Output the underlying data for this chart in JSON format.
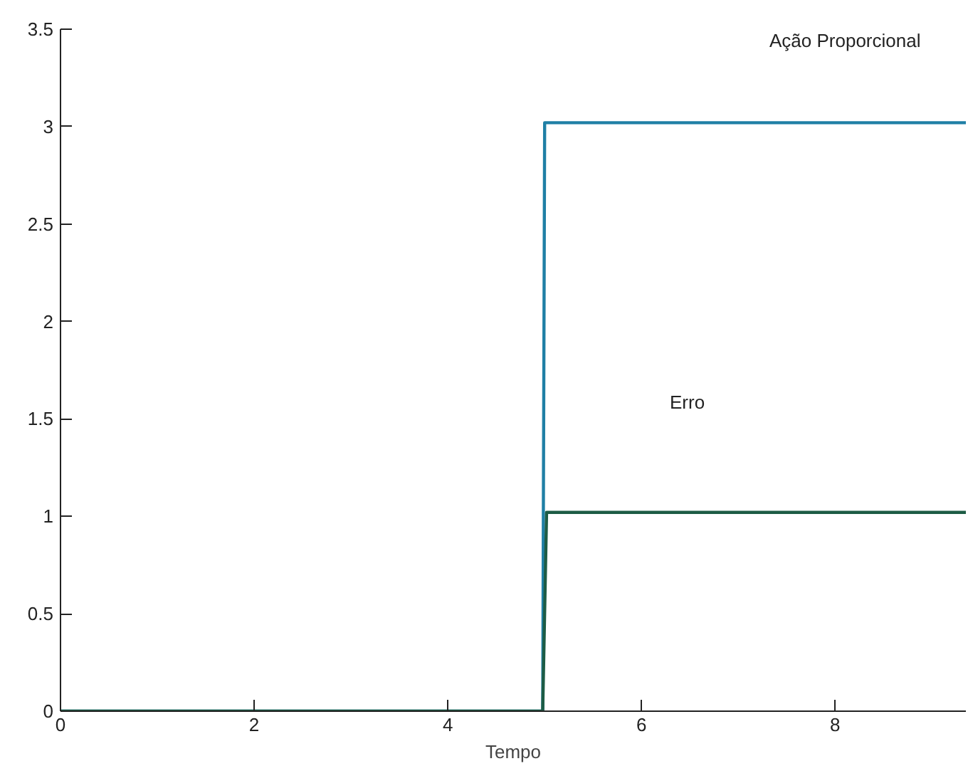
{
  "chart_data": {
    "type": "line",
    "xlabel": "Tempo",
    "xlim": [
      0,
      9.35
    ],
    "ylim": [
      0,
      3.5
    ],
    "xticks": [
      0,
      2,
      4,
      6,
      8
    ],
    "yticks": [
      0,
      0.5,
      1,
      1.5,
      2,
      2.5,
      3,
      3.5
    ],
    "grid": false,
    "marker": "none",
    "line_style": "solid",
    "series": [
      {
        "color": "#1f7fa5",
        "x": [
          0,
          4.98,
          5.0,
          9.35
        ],
        "values": [
          0,
          0,
          3.02,
          3.02
        ]
      },
      {
        "color": "#1d5c45",
        "x": [
          0,
          4.98,
          5.02,
          9.35
        ],
        "values": [
          0,
          0,
          1.02,
          1.02
        ]
      }
    ],
    "annotations": [
      "Ação Proporcional",
      "Erro"
    ]
  }
}
